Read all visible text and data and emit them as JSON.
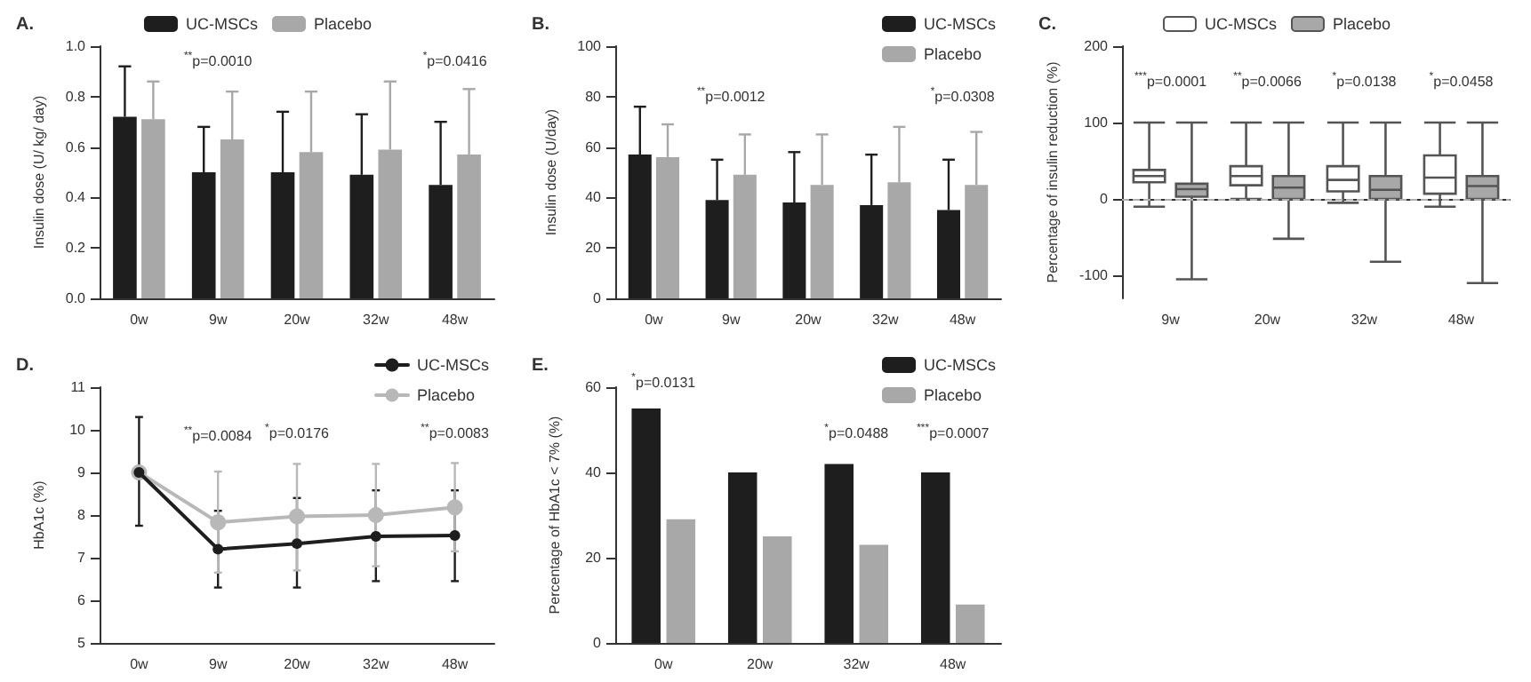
{
  "chart_data": [
    {
      "type": "bar",
      "title": "A.",
      "ylabel": "Insulin dose (U/ kg/ day)",
      "categories": [
        "0w",
        "9w",
        "20w",
        "32w",
        "48w"
      ],
      "series": [
        {
          "name": "UC-MSCs",
          "color": "#1e1e1e",
          "values": [
            0.72,
            0.5,
            0.5,
            0.49,
            0.45
          ],
          "errors": [
            [
              0.72,
              0.92
            ],
            [
              0.5,
              0.68
            ],
            [
              0.5,
              0.74
            ],
            [
              0.49,
              0.73
            ],
            [
              0.45,
              0.7
            ]
          ]
        },
        {
          "name": "Placebo",
          "color": "#a8a8a8",
          "values": [
            0.71,
            0.63,
            0.58,
            0.59,
            0.57
          ],
          "errors": [
            [
              0.71,
              0.86
            ],
            [
              0.63,
              0.82
            ],
            [
              0.58,
              0.82
            ],
            [
              0.59,
              0.86
            ],
            [
              0.57,
              0.83
            ]
          ]
        }
      ],
      "ylim": [
        0,
        1
      ],
      "yticks": [
        {
          "value": 0,
          "label": "0.0"
        },
        0.2,
        0.4,
        0.6,
        0.8,
        {
          "value": 1,
          "label": "1.0"
        }
      ],
      "grid": false,
      "legend": "top",
      "annotations": [
        "$^{**}$p=0.0010",
        "$^{*}$p=0.0416"
      ]
    },
    {
      "type": "bar",
      "title": "B.",
      "ylabel": "Insulin dose (U/day)",
      "categories": [
        "0w",
        "9w",
        "20w",
        "32w",
        "48w"
      ],
      "series": [
        {
          "name": "UC-MSCs",
          "color": "#1e1e1e",
          "values": [
            57,
            39,
            38,
            37,
            35
          ],
          "errors": [
            [
              57,
              76
            ],
            [
              39,
              55
            ],
            [
              38,
              58
            ],
            [
              37,
              57
            ],
            [
              35,
              55
            ]
          ]
        },
        {
          "name": "Placebo",
          "color": "#a8a8a8",
          "values": [
            56,
            49,
            45,
            46,
            45
          ],
          "errors": [
            [
              56,
              69
            ],
            [
              49,
              65
            ],
            [
              45,
              65
            ],
            [
              46,
              68
            ],
            [
              45,
              66
            ]
          ]
        }
      ],
      "ylim": [
        0,
        100
      ],
      "yticks": [
        0,
        20,
        40,
        60,
        80,
        100
      ],
      "grid": false,
      "legend": "top right",
      "annotations": [
        "$^{**}$p=0.0012",
        "$^{*}$p=0.0308"
      ]
    },
    {
      "type": "box",
      "title": "C.",
      "ylabel": "Percentage of insulin reduction (%)",
      "categories": [
        "9w",
        "20w",
        "32w",
        "48w"
      ],
      "series": [
        {
          "name": "UC-MSCs",
          "color": "#ffffff",
          "boxes": [
            {
              "low": -10,
              "q1": 22,
              "median": 30,
              "q3": 38,
              "high": 100
            },
            {
              "low": 0,
              "q1": 18,
              "median": 30,
              "q3": 43,
              "high": 100
            },
            {
              "low": -5,
              "q1": 10,
              "median": 25,
              "q3": 43,
              "high": 100
            },
            {
              "low": -10,
              "q1": 7,
              "median": 28,
              "q3": 57,
              "high": 100
            }
          ]
        },
        {
          "name": "Placebo",
          "color": "#a8a8a8",
          "boxes": [
            {
              "low": -105,
              "q1": 3,
              "median": 13,
              "q3": 20,
              "high": 100
            },
            {
              "low": -52,
              "q1": 0,
              "median": 15,
              "q3": 30,
              "high": 100
            },
            {
              "low": -82,
              "q1": 0,
              "median": 12,
              "q3": 30,
              "high": 100
            },
            {
              "low": -110,
              "q1": 0,
              "median": 17,
              "q3": 30,
              "high": 100
            }
          ]
        }
      ],
      "ylim": [
        -130,
        200
      ],
      "yticks": [
        -100,
        0,
        100,
        200
      ],
      "grid": false,
      "legend": "top",
      "ref_lines": [
        {
          "axis": "y",
          "value": 0,
          "color": "#b0b0b0",
          "line_style": "dashed"
        }
      ],
      "annotations": [
        "$^{***}$p=0.0001",
        "$^{**}$p=0.0066",
        "$^{*}$p=0.0138",
        "$^{*}$p=0.0458"
      ]
    },
    {
      "type": "line",
      "title": "D.",
      "ylabel": "HbA1c (%)",
      "categories": [
        "0w",
        "9w",
        "20w",
        "32w",
        "48w"
      ],
      "series": [
        {
          "name": "UC-MSCs",
          "color": "#1e1e1e",
          "values": [
            9.0,
            7.2,
            7.33,
            7.5,
            7.52
          ],
          "errors": [
            [
              7.75,
              10.3
            ],
            [
              6.3,
              8.1
            ],
            [
              6.3,
              8.4
            ],
            [
              6.45,
              8.58
            ],
            [
              6.45,
              8.58
            ]
          ]
        },
        {
          "name": "Placebo",
          "color": "#b8b8b8",
          "values": [
            9.0,
            7.83,
            7.97,
            8.0,
            8.18
          ],
          "errors": [
            null,
            [
              6.65,
              9.02
            ],
            [
              6.7,
              9.2
            ],
            [
              6.8,
              9.2
            ],
            [
              7.15,
              9.22
            ]
          ]
        }
      ],
      "ylim": [
        5,
        11
      ],
      "yticks": [
        5,
        6,
        7,
        8,
        9,
        10,
        11
      ],
      "grid": false,
      "legend": "top right",
      "marker": "circle",
      "line_style": "solid",
      "annotations": [
        "$^{**}$p=0.0084",
        "$^{*}$p=0.0176",
        "$^{**}$p=0.0083"
      ]
    },
    {
      "type": "bar",
      "title": "E.",
      "ylabel": "Percentage of HbA1c < 7% (%)",
      "categories": [
        "0w",
        "20w",
        "32w",
        "48w"
      ],
      "series": [
        {
          "name": "UC-MSCs",
          "color": "#1e1e1e",
          "values": [
            55,
            40,
            42,
            40
          ]
        },
        {
          "name": "Placebo",
          "color": "#a8a8a8",
          "values": [
            29,
            25,
            23,
            9
          ]
        }
      ],
      "ylim": [
        0,
        60
      ],
      "yticks": [
        0,
        20,
        40,
        60
      ],
      "grid": false,
      "legend": "top right",
      "annotations": [
        "$^{*}$p=0.0131",
        "$^{*}$p=0.0488",
        "$^{***}$p=0.0007"
      ]
    }
  ]
}
